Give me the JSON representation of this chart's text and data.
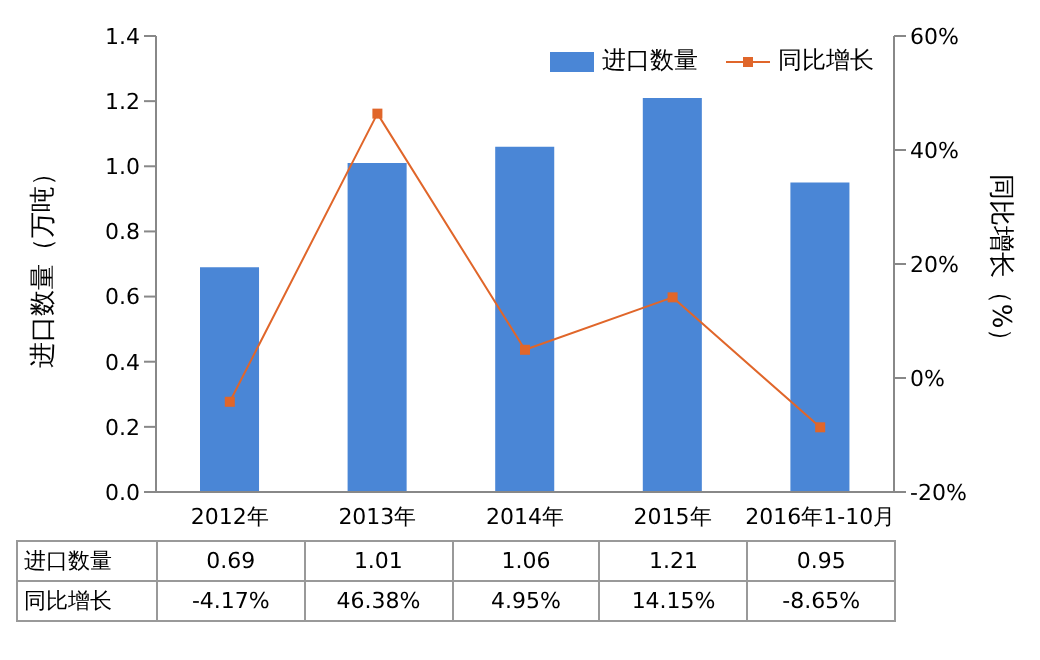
{
  "chart_data": {
    "type": "bar",
    "categories": [
      "2012年",
      "2013年",
      "2014年",
      "2015年",
      "2016年1-10月"
    ],
    "series": [
      {
        "name": "进口数量",
        "color": "#4a86d6",
        "values": [
          0.69,
          1.01,
          1.06,
          1.21,
          0.95
        ],
        "value_labels": [
          "0.69",
          "1.01",
          "1.06",
          "1.21",
          "0.95"
        ]
      },
      {
        "name": "同比增长",
        "type": "line",
        "axis": "y2",
        "color": "#e0662a",
        "values": [
          -4.17,
          46.38,
          4.95,
          14.15,
          -8.65
        ],
        "value_labels": [
          "-4.17%",
          "46.38%",
          "4.95%",
          "14.15%",
          "-8.65%"
        ]
      }
    ],
    "ylabel": "进口数量（万吨）",
    "y2label": "同比增长（%）",
    "ylim": [
      0,
      1.4
    ],
    "yticks": [
      {
        "value": 0,
        "label": "0.0"
      },
      {
        "value": 0.2,
        "label": "0.2"
      },
      {
        "value": 0.4,
        "label": "0.4"
      },
      {
        "value": 0.6,
        "label": "0.6"
      },
      {
        "value": 0.8,
        "label": "0.8"
      },
      {
        "value": 1,
        "label": "1.0"
      },
      {
        "value": 1.2,
        "label": "1.2"
      },
      {
        "value": 1.4,
        "label": "1.4"
      }
    ],
    "y2lim": [
      -20,
      60
    ],
    "y2ticks": [
      {
        "value": -20,
        "label": "-20%"
      },
      {
        "value": 0,
        "label": "0%"
      },
      {
        "value": 20,
        "label": "20%"
      },
      {
        "value": 40,
        "label": "40%"
      },
      {
        "value": 60,
        "label": "60%"
      }
    ],
    "legend": "top right",
    "marker": "square",
    "data_labels": true
  }
}
